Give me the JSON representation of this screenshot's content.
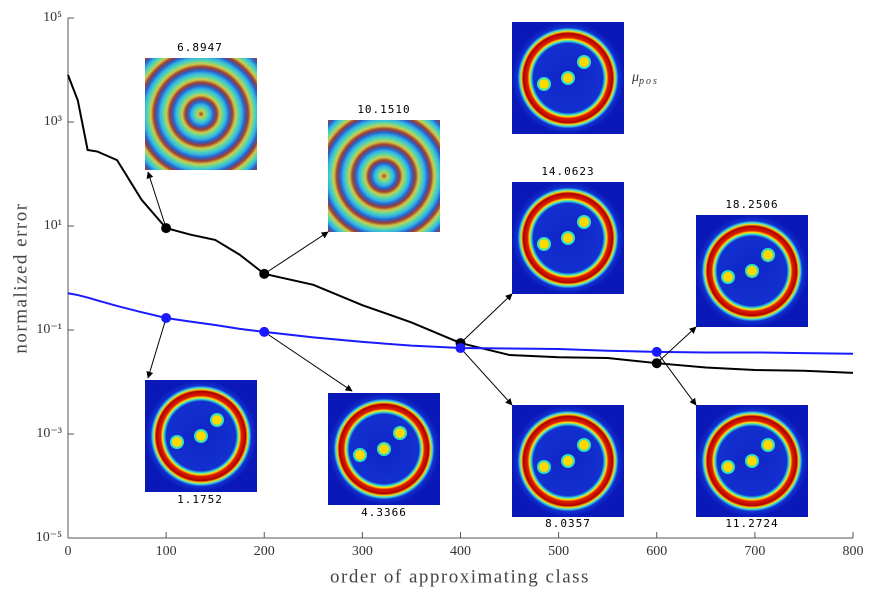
{
  "chart_data": {
    "type": "line",
    "y_label": "normalized error",
    "x_label": "order of approximating class",
    "x": [
      0,
      10,
      20,
      30,
      50,
      75,
      100,
      125,
      150,
      175,
      200,
      250,
      300,
      350,
      400,
      450,
      500,
      550,
      600,
      650,
      700,
      750,
      800
    ],
    "series": [
      {
        "color": "#000000",
        "values": [
          8000,
          2600,
          290,
          270,
          185,
          32,
          9.1,
          6.8,
          5.4,
          2.8,
          1.2,
          0.74,
          0.3,
          0.14,
          0.056,
          0.033,
          0.03,
          0.029,
          0.023,
          0.019,
          0.017,
          0.0165,
          0.015
        ]
      },
      {
        "color": "#1a1aff",
        "values": [
          0.51,
          0.47,
          0.42,
          0.37,
          0.29,
          0.22,
          0.17,
          0.145,
          0.125,
          0.105,
          0.092,
          0.072,
          0.059,
          0.05,
          0.045,
          0.044,
          0.043,
          0.04,
          0.038,
          0.037,
          0.037,
          0.036,
          0.035
        ]
      }
    ],
    "log_y": true,
    "xlim": [
      0,
      800
    ],
    "ylim": [
      1e-05,
      100000
    ],
    "xticks": [
      0,
      100,
      200,
      300,
      400,
      500,
      600,
      700,
      800
    ],
    "yticks": [
      {
        "value": 100000,
        "label": "10⁵"
      },
      {
        "value": 1000,
        "label": "10³"
      },
      {
        "value": 10,
        "label": "10¹"
      },
      {
        "value": 0.1,
        "label": "10⁻¹"
      },
      {
        "value": 0.001,
        "label": "10⁻³"
      },
      {
        "value": 1e-05,
        "label": "10⁻⁵"
      }
    ],
    "annotations": [
      "6.8947",
      "10.1510",
      "14.0623",
      "18.2506",
      "1.1752",
      "4.3366",
      "8.0357",
      "11.2724"
    ],
    "mu_label": {
      "symbol": "μ",
      "subscript": "pos"
    }
  }
}
